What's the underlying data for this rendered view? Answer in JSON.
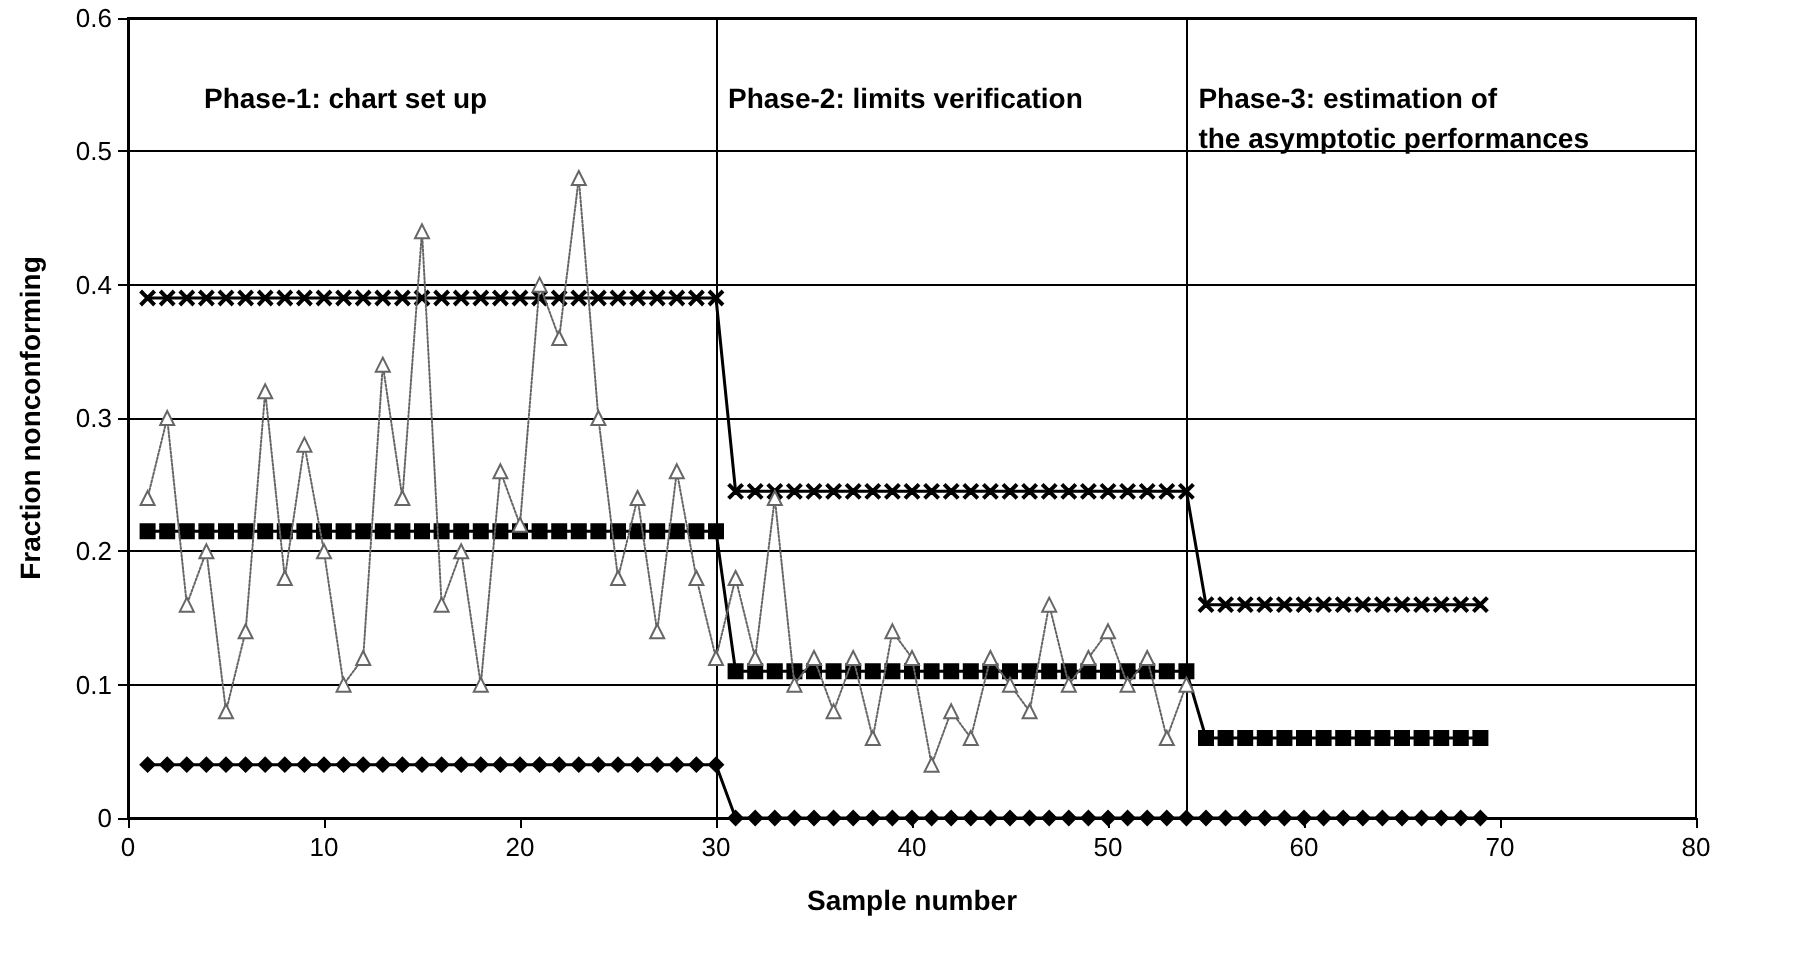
{
  "chart_data": {
    "type": "line",
    "xlabel": "Sample number",
    "ylabel": "Fraction nonconforming",
    "x": [
      1,
      2,
      3,
      4,
      5,
      6,
      7,
      8,
      9,
      10,
      11,
      12,
      13,
      14,
      15,
      16,
      17,
      18,
      19,
      20,
      21,
      22,
      23,
      24,
      25,
      26,
      27,
      28,
      29,
      30,
      31,
      32,
      33,
      34,
      35,
      36,
      37,
      38,
      39,
      40,
      41,
      42,
      43,
      44,
      45,
      46,
      47,
      48,
      49,
      50,
      51,
      52,
      53,
      54,
      55,
      56,
      57,
      58,
      59,
      60,
      61,
      62,
      63,
      64,
      65,
      66,
      67,
      68,
      69
    ],
    "series": [
      {
        "color": "#000000",
        "marker": "cross",
        "line_style": "solid",
        "values": [
          0.39,
          0.39,
          0.39,
          0.39,
          0.39,
          0.39,
          0.39,
          0.39,
          0.39,
          0.39,
          0.39,
          0.39,
          0.39,
          0.39,
          0.39,
          0.39,
          0.39,
          0.39,
          0.39,
          0.39,
          0.39,
          0.39,
          0.39,
          0.39,
          0.39,
          0.39,
          0.39,
          0.39,
          0.39,
          0.39,
          0.245,
          0.245,
          0.245,
          0.245,
          0.245,
          0.245,
          0.245,
          0.245,
          0.245,
          0.245,
          0.245,
          0.245,
          0.245,
          0.245,
          0.245,
          0.245,
          0.245,
          0.245,
          0.245,
          0.245,
          0.245,
          0.245,
          0.245,
          0.245,
          0.16,
          0.16,
          0.16,
          0.16,
          0.16,
          0.16,
          0.16,
          0.16,
          0.16,
          0.16,
          0.16,
          0.16,
          0.16,
          0.16,
          0.16
        ]
      },
      {
        "color": "#000000",
        "marker": "square",
        "line_style": "solid",
        "values": [
          0.215,
          0.215,
          0.215,
          0.215,
          0.215,
          0.215,
          0.215,
          0.215,
          0.215,
          0.215,
          0.215,
          0.215,
          0.215,
          0.215,
          0.215,
          0.215,
          0.215,
          0.215,
          0.215,
          0.215,
          0.215,
          0.215,
          0.215,
          0.215,
          0.215,
          0.215,
          0.215,
          0.215,
          0.215,
          0.215,
          0.11,
          0.11,
          0.11,
          0.11,
          0.11,
          0.11,
          0.11,
          0.11,
          0.11,
          0.11,
          0.11,
          0.11,
          0.11,
          0.11,
          0.11,
          0.11,
          0.11,
          0.11,
          0.11,
          0.11,
          0.11,
          0.11,
          0.11,
          0.11,
          0.06,
          0.06,
          0.06,
          0.06,
          0.06,
          0.06,
          0.06,
          0.06,
          0.06,
          0.06,
          0.06,
          0.06,
          0.06,
          0.06,
          0.06
        ]
      },
      {
        "color": "#000000",
        "marker": "diamond",
        "line_style": "solid",
        "values": [
          0.04,
          0.04,
          0.04,
          0.04,
          0.04,
          0.04,
          0.04,
          0.04,
          0.04,
          0.04,
          0.04,
          0.04,
          0.04,
          0.04,
          0.04,
          0.04,
          0.04,
          0.04,
          0.04,
          0.04,
          0.04,
          0.04,
          0.04,
          0.04,
          0.04,
          0.04,
          0.04,
          0.04,
          0.04,
          0.04,
          0,
          0,
          0,
          0,
          0,
          0,
          0,
          0,
          0,
          0,
          0,
          0,
          0,
          0,
          0,
          0,
          0,
          0,
          0,
          0,
          0,
          0,
          0,
          0,
          0,
          0,
          0,
          0,
          0,
          0,
          0,
          0,
          0,
          0,
          0,
          0,
          0,
          0,
          0
        ]
      },
      {
        "color": "#666666",
        "marker": "triangle",
        "line_style": "dotted",
        "values": [
          0.24,
          0.3,
          0.16,
          0.2,
          0.08,
          0.14,
          0.32,
          0.18,
          0.28,
          0.2,
          0.1,
          0.12,
          0.34,
          0.24,
          0.44,
          0.16,
          0.2,
          0.1,
          0.26,
          0.22,
          0.4,
          0.36,
          0.48,
          0.3,
          0.18,
          0.24,
          0.14,
          0.26,
          0.18,
          0.12,
          0.18,
          0.12,
          0.24,
          0.1,
          0.12,
          0.08,
          0.12,
          0.06,
          0.14,
          0.12,
          0.04,
          0.08,
          0.06,
          0.12,
          0.1,
          0.08,
          0.16,
          0.1,
          0.12,
          0.14,
          0.1,
          0.12,
          0.06,
          0.1,
          null,
          null,
          null,
          null,
          null,
          null,
          null,
          null,
          null,
          null,
          null,
          null,
          null,
          null,
          null
        ]
      }
    ],
    "xlim": [
      0,
      80
    ],
    "xticks": [
      0,
      10,
      20,
      30,
      40,
      50,
      60,
      70,
      80
    ],
    "ylim": [
      0,
      0.6
    ],
    "yticks": [
      0,
      0.1,
      0.2,
      0.3,
      0.4,
      0.5,
      0.6
    ],
    "grid": "y",
    "ref_lines": [
      {
        "axis": "x",
        "value": 30,
        "color": "#000000"
      },
      {
        "axis": "x",
        "value": 54,
        "color": "#000000"
      }
    ],
    "annotations": [
      "Phase-1: chart set up",
      "Phase-2: limits verification",
      "Phase-3: estimation of\nthe asymptotic performances"
    ]
  }
}
